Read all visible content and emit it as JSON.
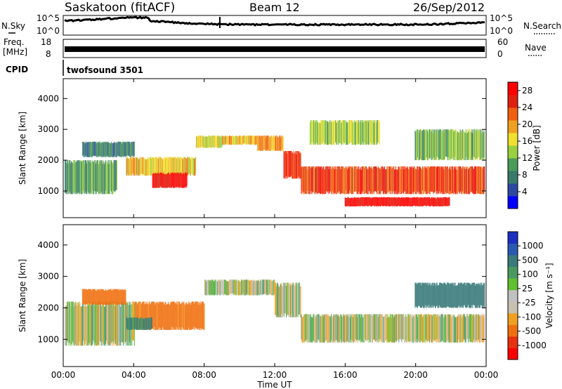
{
  "header": {
    "title": "Saskatoon (fitACF)",
    "beam": "Beam 12",
    "date": "26/Sep/2012"
  },
  "left_labels": {
    "nsky": "N.Sky",
    "freq": "Freq.",
    "freq_unit": "[MHz]",
    "cpid": "CPID"
  },
  "right_labels": {
    "nsearch": "N.Search",
    "nave": "Nave"
  },
  "noise_panel": {
    "left_ticks": [
      "10^5",
      "10^0"
    ],
    "right_ticks": [
      "10^5",
      "10^0"
    ]
  },
  "freq_panel": {
    "left_ticks": [
      "18",
      "8"
    ],
    "right_ticks": [
      "60",
      "0"
    ]
  },
  "cpid_text": "twofsound 3501",
  "colors": {
    "power_scale": [
      "#0000ff",
      "#2a4aa0",
      "#3a7a6a",
      "#4a9a5a",
      "#9ad040",
      "#f2e030",
      "#f0a020",
      "#f06010",
      "#e02010",
      "#ff0000"
    ],
    "velocity_scale": [
      "#1a30c0",
      "#2a5ab0",
      "#3a7a7a",
      "#4a9a60",
      "#60c030",
      "#c0c0c0",
      "#c8c0b0",
      "#f0a020",
      "#f07010",
      "#e83010",
      "#ff0000"
    ]
  },
  "chart_data": [
    {
      "type": "heatmap",
      "name": "power",
      "ylabel": "Slant Range [km]",
      "ylim": [
        180,
        4600
      ],
      "yticks": [
        "1000",
        "2000",
        "3000",
        "4000"
      ],
      "xlim": [
        0,
        24
      ],
      "colorbar": {
        "label": "Power [dB]",
        "ticks": [
          "4",
          "8",
          "12",
          "16",
          "20",
          "24",
          "28"
        ],
        "range": [
          0,
          30
        ]
      },
      "regions": [
        {
          "t0": 0.0,
          "t1": 3.0,
          "r0": 900,
          "r1": 2000,
          "value": 10
        },
        {
          "t0": 1.0,
          "t1": 4.0,
          "r0": 2100,
          "r1": 2600,
          "value": 8
        },
        {
          "t0": 3.5,
          "t1": 7.5,
          "r0": 1500,
          "r1": 2100,
          "value": 18
        },
        {
          "t0": 5.0,
          "t1": 7.0,
          "r0": 1100,
          "r1": 1600,
          "value": 28
        },
        {
          "t0": 7.5,
          "t1": 9.0,
          "r0": 2400,
          "r1": 2800,
          "value": 16
        },
        {
          "t0": 9.0,
          "t1": 11.0,
          "r0": 2500,
          "r1": 2800,
          "value": 18
        },
        {
          "t0": 11.0,
          "t1": 12.5,
          "r0": 2300,
          "r1": 2800,
          "value": 20
        },
        {
          "t0": 12.5,
          "t1": 13.5,
          "r0": 1400,
          "r1": 2300,
          "value": 26
        },
        {
          "t0": 13.5,
          "t1": 24.0,
          "r0": 900,
          "r1": 1800,
          "value": 24
        },
        {
          "t0": 16.0,
          "t1": 22.0,
          "r0": 500,
          "r1": 800,
          "value": 28
        },
        {
          "t0": 14.0,
          "t1": 18.0,
          "r0": 2500,
          "r1": 3300,
          "value": 14
        },
        {
          "t0": 20.0,
          "t1": 24.0,
          "r0": 2000,
          "r1": 3000,
          "value": 12
        }
      ]
    },
    {
      "type": "heatmap",
      "name": "velocity",
      "ylabel": "Slant Range [km]",
      "ylim": [
        180,
        4600
      ],
      "yticks": [
        "1000",
        "2000",
        "3000",
        "4000"
      ],
      "xlim": [
        0,
        24
      ],
      "xticks": [
        "00:00",
        "04:00",
        "08:00",
        "12:00",
        "16:00",
        "20:00",
        "00:00"
      ],
      "xlabel": "Time UT",
      "colorbar": {
        "label": "Velocity [m s⁻¹]",
        "ticks": [
          "1000",
          "500",
          "100",
          "25",
          "-25",
          "-100",
          "-500",
          "-1000"
        ]
      },
      "regions": [
        {
          "t0": 0.0,
          "t1": 4.0,
          "r0": 800,
          "r1": 2200,
          "value": 0
        },
        {
          "t0": 4.0,
          "t1": 8.0,
          "r0": 1300,
          "r1": 2200,
          "value": -150
        },
        {
          "t0": 3.5,
          "t1": 5.0,
          "r0": 1300,
          "r1": 1700,
          "value": 120
        },
        {
          "t0": 8.0,
          "t1": 12.0,
          "r0": 2400,
          "r1": 2900,
          "value": 0
        },
        {
          "t0": 12.0,
          "t1": 13.5,
          "r0": 1700,
          "r1": 2800,
          "value": 0
        },
        {
          "t0": 13.5,
          "t1": 24.0,
          "r0": 900,
          "r1": 1800,
          "value": 0
        },
        {
          "t0": 1.0,
          "t1": 3.5,
          "r0": 2100,
          "r1": 2600,
          "value": -200
        },
        {
          "t0": 20.0,
          "t1": 24.0,
          "r0": 2000,
          "r1": 2800,
          "value": 300
        }
      ]
    }
  ]
}
